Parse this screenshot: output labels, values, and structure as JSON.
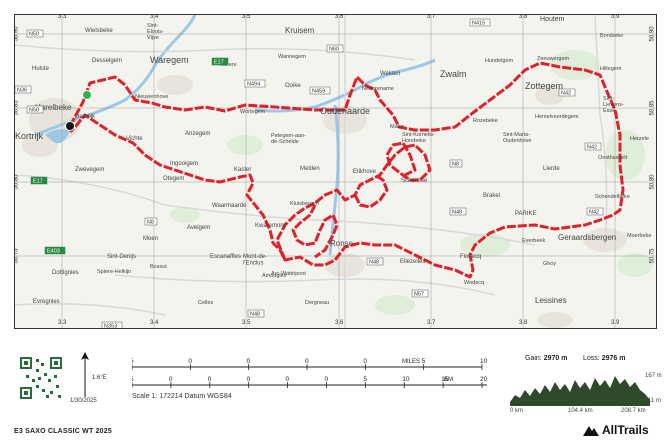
{
  "map": {
    "grid_lon": [
      "3.3",
      "3.4",
      "3.5",
      "3.6",
      "3.7",
      "3.8",
      "3.9"
    ],
    "grid_lat": [
      "50.90",
      "50.85",
      "50.80",
      "50.75"
    ],
    "places": [
      {
        "id": "wielsbeke",
        "text": "Wielsbeke"
      },
      {
        "id": "sint-eloois-vijve",
        "text": "Sint-\nEloois-\nVijve"
      },
      {
        "id": "kruisem",
        "text": "Kruisem"
      },
      {
        "id": "houtem",
        "text": "Houtem"
      },
      {
        "id": "borsbeke",
        "text": "Borsbeke"
      },
      {
        "id": "desselgem",
        "text": "Desselgem"
      },
      {
        "id": "waregem",
        "text": "Waregem"
      },
      {
        "id": "nokere",
        "text": "Nokere"
      },
      {
        "id": "wannegem",
        "text": "Wannegem"
      },
      {
        "id": "welden",
        "text": "Welden"
      },
      {
        "id": "zwalm",
        "text": "Zwalm"
      },
      {
        "id": "hundelgem",
        "text": "Hundelgem"
      },
      {
        "id": "zeeuwergem",
        "text": "Zeeuwergem"
      },
      {
        "id": "hillegem",
        "text": "Hillegem"
      },
      {
        "id": "hulste",
        "text": "Hulste"
      },
      {
        "id": "ooike",
        "text": "Ooike"
      },
      {
        "id": "nederename",
        "text": "Nederename"
      },
      {
        "id": "zottegem",
        "text": "Zottegem"
      },
      {
        "id": "harelbeke",
        "text": "Harelbeke"
      },
      {
        "id": "nieuwenhove",
        "text": "Nieuwenhove"
      },
      {
        "id": "deerlijk",
        "text": "Deerlijk"
      },
      {
        "id": "wortegem",
        "text": "Wortegem"
      },
      {
        "id": "oudenaarde",
        "text": "Oudenaarde"
      },
      {
        "id": "sint-lievens-esse",
        "text": "Sint-\nLievens-\nEsse"
      },
      {
        "id": "kortrijk",
        "text": "Kortrijk"
      },
      {
        "id": "vichte",
        "text": "Vichte"
      },
      {
        "id": "anzegem",
        "text": "Anzegem"
      },
      {
        "id": "petegem",
        "text": "Petegem-aan-\nde-Schelde"
      },
      {
        "id": "mater",
        "text": "Mater"
      },
      {
        "id": "rozebeke",
        "text": "Rozebeke"
      },
      {
        "id": "sint-kornelis",
        "text": "Sint-Kornelis-\nHorebeke"
      },
      {
        "id": "sint-maria",
        "text": "Sint-Maria-\nOudenhove"
      },
      {
        "id": "zwevegem",
        "text": "Zwevegem"
      },
      {
        "id": "ingooigem",
        "text": "Ingooigem"
      },
      {
        "id": "herzele",
        "text": "Herzele"
      },
      {
        "id": "hemelveerdegem",
        "text": "Hemelveerdegem"
      },
      {
        "id": "oosthassett",
        "text": "Oosthassett"
      },
      {
        "id": "otegem",
        "text": "Otegem"
      },
      {
        "id": "kaster",
        "text": "Kaster"
      },
      {
        "id": "melden",
        "text": "Melden"
      },
      {
        "id": "etikhove",
        "text": "Etikhove"
      },
      {
        "id": "schorisse",
        "text": "Schorisse"
      },
      {
        "id": "lierde",
        "text": "Lierde"
      },
      {
        "id": "schendelbeke",
        "text": "Schendelbeke"
      },
      {
        "id": "kluisbergen",
        "text": "Kluisbergen"
      },
      {
        "id": "waarmaarde",
        "text": "Waarmaarde"
      },
      {
        "id": "kwaremont",
        "text": "Kwaremont"
      },
      {
        "id": "brakel",
        "text": "Brakel"
      },
      {
        "id": "parike",
        "text": "PARIKE"
      },
      {
        "id": "avelgem",
        "text": "Avelgem"
      },
      {
        "id": "everbeek",
        "text": "Everbeek"
      },
      {
        "id": "geraardsbergen",
        "text": "Geraardsbergen"
      },
      {
        "id": "moen",
        "text": "Moen"
      },
      {
        "id": "escanaffles",
        "text": "Escanaffles"
      },
      {
        "id": "moerbeke",
        "text": "Moerbeke"
      },
      {
        "id": "sint-denijs",
        "text": "Sint-Denijs"
      },
      {
        "id": "ronse",
        "text": "Ronse"
      },
      {
        "id": "mont-de-lenclus",
        "text": "Mont-de-\nl'Enclus"
      },
      {
        "id": "bossut",
        "text": "Bossut"
      },
      {
        "id": "amougies",
        "text": "Amougies"
      },
      {
        "id": "flobecq",
        "text": "Flobecq"
      },
      {
        "id": "ellezelles",
        "text": "Ellezelles"
      },
      {
        "id": "ghoy",
        "text": "Ghoy"
      },
      {
        "id": "dottignies",
        "text": "Dottignies"
      },
      {
        "id": "spiere-helkijn",
        "text": "Spiere-Helkijn"
      },
      {
        "id": "arc-wattripont",
        "text": "Arc-Wattripont"
      },
      {
        "id": "wodecq",
        "text": "Wodecq"
      },
      {
        "id": "evregnies",
        "text": "Evregnies"
      },
      {
        "id": "celles",
        "text": "Celles"
      },
      {
        "id": "dergneau",
        "text": "Dergneau"
      },
      {
        "id": "lessines",
        "text": "Lessines"
      }
    ],
    "roads": [
      {
        "id": "n50-top",
        "text": "N50"
      },
      {
        "id": "e17-top",
        "text": "E17"
      },
      {
        "id": "n60-top",
        "text": "N60"
      },
      {
        "id": "n459",
        "text": "N459"
      },
      {
        "id": "n42-a",
        "text": "N42"
      },
      {
        "id": "n42-b",
        "text": "N42"
      },
      {
        "id": "n42-c",
        "text": "N42"
      },
      {
        "id": "n50-left",
        "text": "N50"
      },
      {
        "id": "e17-left",
        "text": "E17"
      },
      {
        "id": "n8-a",
        "text": "N8"
      },
      {
        "id": "n8-b",
        "text": "N8"
      },
      {
        "id": "n48-a",
        "text": "N48"
      },
      {
        "id": "n48-b",
        "text": "N48"
      },
      {
        "id": "n48-c",
        "text": "N48"
      },
      {
        "id": "e403",
        "text": "E403"
      },
      {
        "id": "n57",
        "text": "N57"
      },
      {
        "id": "n353",
        "text": "N353"
      },
      {
        "id": "n415",
        "text": "N415"
      },
      {
        "id": "n36",
        "text": "N36"
      },
      {
        "id": "n494",
        "text": "N494"
      }
    ],
    "track_color": "#e0202a",
    "start_color": "#2db34a",
    "end_color": "#111111"
  },
  "footer": {
    "north_label": "1.6°E",
    "date": "1/30/2025",
    "miles_label": "MILES",
    "miles_ticks": [
      "5",
      "0",
      "0",
      "0",
      "0",
      "5",
      "10"
    ],
    "km_label": "KM",
    "km_ticks": [
      "5",
      "0",
      "0",
      "0",
      "0",
      "0",
      "5",
      "10",
      "15",
      "20"
    ],
    "scale_text": "Scale 1: 172214  Datum WGS84",
    "gain_label": "Gain:",
    "gain_value": "2970 m",
    "loss_label": "Loss:",
    "loss_value": "2976 m",
    "elev_max": "167 m",
    "elev_min": "11 m",
    "dist_ticks": [
      "0 km",
      "104.4 km",
      "208.7 km"
    ],
    "title": "E3 SAXO CLASSIC WT 2025",
    "brand": "AllTrails"
  }
}
